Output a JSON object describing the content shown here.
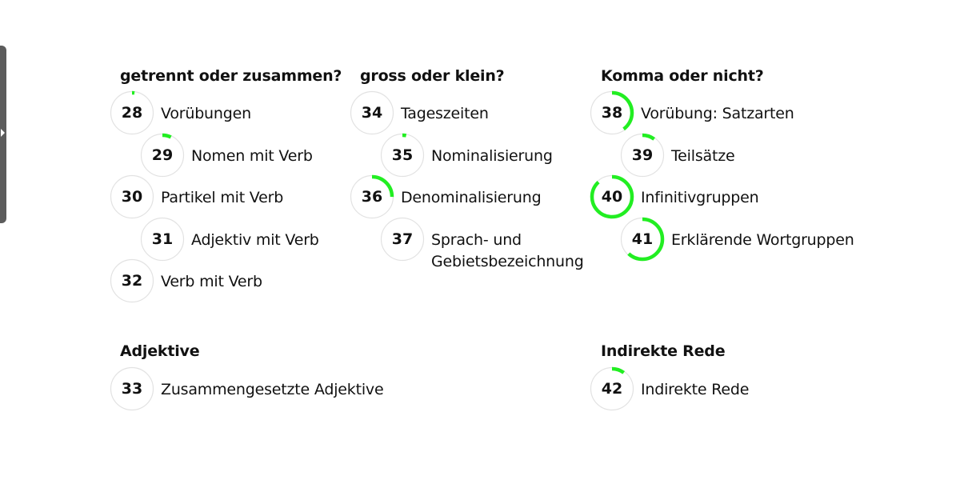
{
  "colors": {
    "progress": "#22ee22",
    "track": "#e2e2e2",
    "text": "#111111"
  },
  "sidebar_toggle": {
    "icon": "triangle-right-icon"
  },
  "sections": [
    {
      "title": "getrennt oder zusammen?",
      "items": [
        {
          "number": "28",
          "label": "Vorübungen",
          "progress": 0.02
        },
        {
          "number": "29",
          "label": "Nomen mit Verb",
          "progress": 0.07
        },
        {
          "number": "30",
          "label": "Partikel mit Verb",
          "progress": 0
        },
        {
          "number": "31",
          "label": "Adjektiv mit Verb",
          "progress": 0
        },
        {
          "number": "32",
          "label": "Verb mit Verb",
          "progress": 0
        }
      ]
    },
    {
      "title": "gross oder klein?",
      "items": [
        {
          "number": "34",
          "label": "Tageszeiten",
          "progress": 0
        },
        {
          "number": "35",
          "label": "Nominalisierung",
          "progress": 0.03
        },
        {
          "number": "36",
          "label": "Denominalisierung",
          "progress": 0.25
        },
        {
          "number": "37",
          "label": "Sprach- und\nGebietsbezeichnung",
          "progress": 0
        }
      ]
    },
    {
      "title": "Komma oder nicht?",
      "items": [
        {
          "number": "38",
          "label": "Vorübung: Satzarten",
          "progress": 0.4
        },
        {
          "number": "39",
          "label": "Teilsätze",
          "progress": 0.1
        },
        {
          "number": "40",
          "label": "Infinitivgruppen",
          "progress": 0.88
        },
        {
          "number": "41",
          "label": "Erklärende Wortgruppen",
          "progress": 0.62
        }
      ]
    },
    {
      "title": "Adjektive",
      "items": [
        {
          "number": "33",
          "label": "Zusammengesetzte Adjektive",
          "progress": 0
        }
      ]
    },
    {
      "title": "Indirekte Rede",
      "items": [
        {
          "number": "42",
          "label": "Indirekte Rede",
          "progress": 0.1
        }
      ]
    }
  ]
}
